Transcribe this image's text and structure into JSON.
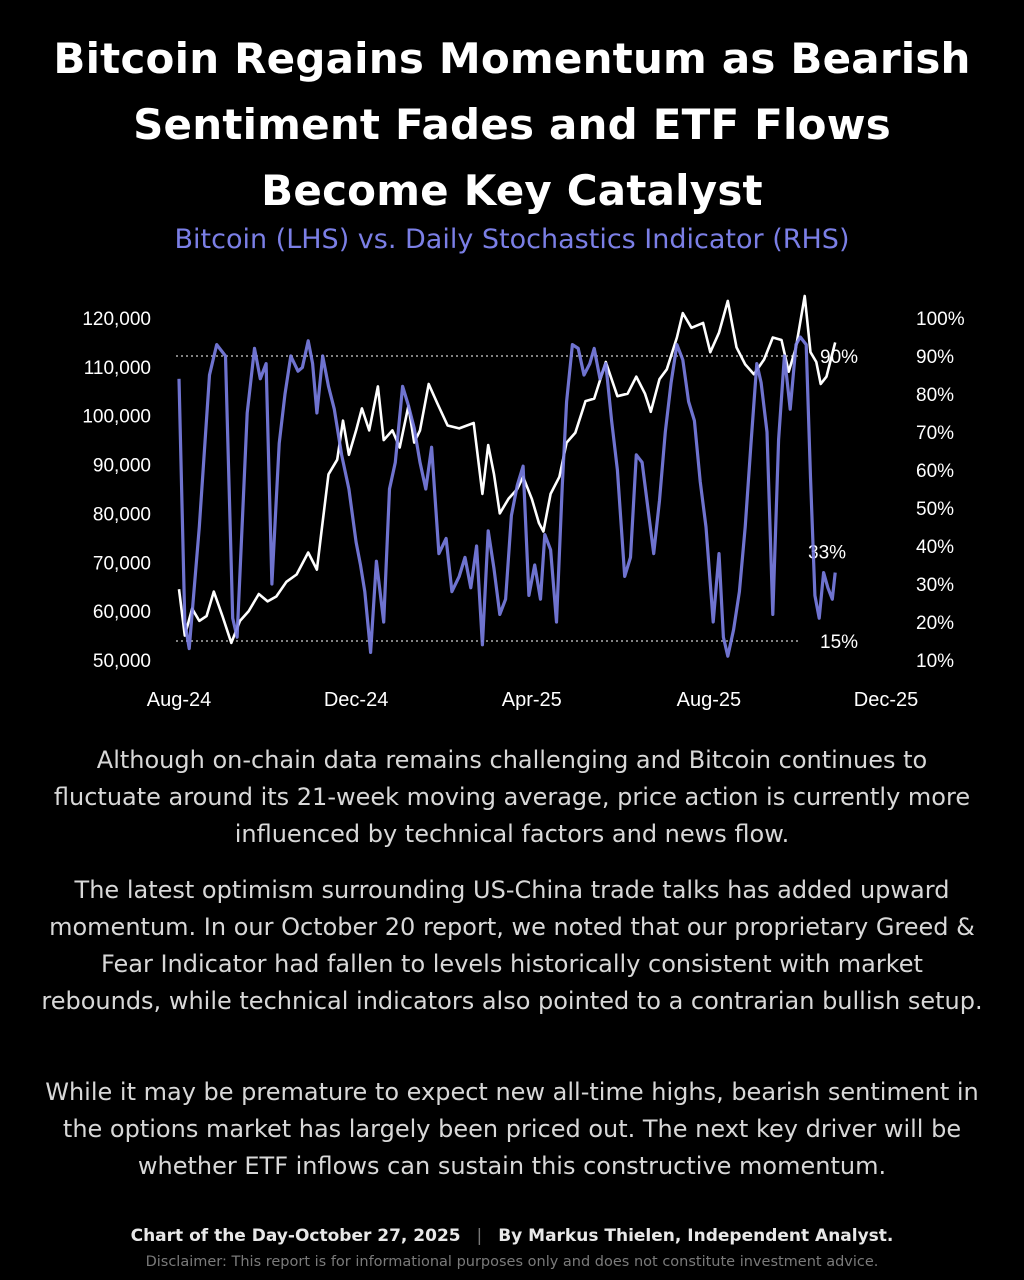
{
  "title_lines": [
    "Bitcoin Regains Momentum as Bearish",
    "Sentiment Fades and ETF Flows",
    "Become Key Catalyst"
  ],
  "colors": {
    "background": "#000000",
    "bitcoin_line": "#ffffff",
    "stochastic_line": "#7b7fe6",
    "subtitle": "#7b7fe6"
  },
  "chart_data": {
    "type": "line",
    "title": "Bitcoin (LHS) vs. Daily Stochastics Indicator (RHS)",
    "x_ticks": [
      "Aug-24",
      "Dec-24",
      "Apr-25",
      "Aug-25",
      "Dec-25"
    ],
    "xlim": [
      "2024-08-01",
      "2025-12-01"
    ],
    "y_left": {
      "ticks": [
        "120,000",
        "110,000",
        "100,000",
        "90,000",
        "80,000",
        "70,000",
        "60,000",
        "50,000"
      ],
      "ylim": [
        50000,
        120000
      ]
    },
    "y_right": {
      "ticks": [
        "100%",
        "90%",
        "80%",
        "70%",
        "60%",
        "50%",
        "40%",
        "30%",
        "20%",
        "10%"
      ],
      "ylim": [
        10,
        100
      ]
    },
    "reference_lines": [
      {
        "label": "90%",
        "value": 90,
        "style": "dotted"
      },
      {
        "label": "15%",
        "value": 15,
        "style": "dotted"
      }
    ],
    "annotations": [
      {
        "label": "33%",
        "value": 33
      }
    ],
    "series": [
      {
        "axis": "left",
        "color": "#ffffff",
        "points": [
          [
            "2024-08-01",
            64500
          ],
          [
            "2024-08-05",
            55000
          ],
          [
            "2024-08-10",
            60500
          ],
          [
            "2024-08-15",
            58000
          ],
          [
            "2024-08-20",
            59000
          ],
          [
            "2024-08-25",
            64000
          ],
          [
            "2024-08-31",
            58900
          ],
          [
            "2024-09-06",
            53500
          ],
          [
            "2024-09-12",
            58000
          ],
          [
            "2024-09-18",
            60000
          ],
          [
            "2024-09-25",
            63500
          ],
          [
            "2024-10-01",
            62000
          ],
          [
            "2024-10-07",
            63000
          ],
          [
            "2024-10-14",
            66000
          ],
          [
            "2024-10-21",
            67500
          ],
          [
            "2024-10-29",
            72000
          ],
          [
            "2024-11-04",
            68500
          ],
          [
            "2024-11-07",
            76000
          ],
          [
            "2024-11-12",
            88000
          ],
          [
            "2024-11-18",
            91000
          ],
          [
            "2024-11-22",
            99000
          ],
          [
            "2024-11-26",
            92000
          ],
          [
            "2024-12-01",
            97000
          ],
          [
            "2024-12-05",
            101500
          ],
          [
            "2024-12-10",
            97000
          ],
          [
            "2024-12-16",
            106000
          ],
          [
            "2024-12-20",
            95000
          ],
          [
            "2024-12-26",
            97000
          ],
          [
            "2024-12-31",
            93500
          ],
          [
            "2025-01-06",
            102000
          ],
          [
            "2025-01-10",
            94500
          ],
          [
            "2025-01-14",
            97000
          ],
          [
            "2025-01-20",
            106500
          ],
          [
            "2025-01-26",
            102500
          ],
          [
            "2025-02-02",
            98000
          ],
          [
            "2025-02-10",
            97400
          ],
          [
            "2025-02-20",
            98500
          ],
          [
            "2025-02-26",
            84000
          ],
          [
            "2025-03-02",
            94000
          ],
          [
            "2025-03-06",
            88000
          ],
          [
            "2025-03-10",
            80000
          ],
          [
            "2025-03-16",
            83000
          ],
          [
            "2025-03-22",
            85000
          ],
          [
            "2025-03-26",
            87500
          ],
          [
            "2025-04-01",
            83000
          ],
          [
            "2025-04-06",
            78000
          ],
          [
            "2025-04-09",
            76300
          ],
          [
            "2025-04-14",
            84000
          ],
          [
            "2025-04-20",
            87500
          ],
          [
            "2025-04-25",
            94500
          ],
          [
            "2025-05-01",
            96500
          ],
          [
            "2025-05-08",
            103000
          ],
          [
            "2025-05-14",
            103500
          ],
          [
            "2025-05-22",
            111000
          ],
          [
            "2025-05-30",
            104000
          ],
          [
            "2025-06-06",
            104500
          ],
          [
            "2025-06-12",
            108000
          ],
          [
            "2025-06-18",
            104500
          ],
          [
            "2025-06-22",
            100800
          ],
          [
            "2025-06-28",
            107500
          ],
          [
            "2025-07-03",
            109500
          ],
          [
            "2025-07-10",
            116000
          ],
          [
            "2025-07-14",
            121000
          ],
          [
            "2025-07-20",
            118000
          ],
          [
            "2025-07-28",
            119000
          ],
          [
            "2025-08-02",
            113000
          ],
          [
            "2025-08-08",
            117000
          ],
          [
            "2025-08-14",
            123500
          ],
          [
            "2025-08-20",
            114000
          ],
          [
            "2025-08-26",
            110500
          ],
          [
            "2025-09-01",
            108500
          ],
          [
            "2025-09-08",
            111500
          ],
          [
            "2025-09-14",
            116000
          ],
          [
            "2025-09-20",
            115500
          ],
          [
            "2025-09-25",
            109000
          ],
          [
            "2025-09-30",
            114000
          ],
          [
            "2025-10-06",
            124500
          ],
          [
            "2025-10-10",
            113000
          ],
          [
            "2025-10-14",
            111000
          ],
          [
            "2025-10-17",
            106500
          ],
          [
            "2025-10-21",
            108000
          ],
          [
            "2025-10-24",
            111500
          ],
          [
            "2025-10-27",
            115000
          ]
        ]
      },
      {
        "axis": "right",
        "color": "#7b7fe6",
        "points": [
          [
            "2024-08-01",
            84
          ],
          [
            "2024-08-05",
            20
          ],
          [
            "2024-08-08",
            13
          ],
          [
            "2024-08-15",
            45
          ],
          [
            "2024-08-22",
            85
          ],
          [
            "2024-08-27",
            93
          ],
          [
            "2024-09-02",
            90
          ],
          [
            "2024-09-07",
            21
          ],
          [
            "2024-09-10",
            16
          ],
          [
            "2024-09-17",
            75
          ],
          [
            "2024-09-22",
            92
          ],
          [
            "2024-09-26",
            84
          ],
          [
            "2024-09-30",
            88
          ],
          [
            "2024-10-04",
            30
          ],
          [
            "2024-10-09",
            67
          ],
          [
            "2024-10-13",
            80
          ],
          [
            "2024-10-17",
            90
          ],
          [
            "2024-10-22",
            86
          ],
          [
            "2024-10-25",
            87
          ],
          [
            "2024-10-29",
            94
          ],
          [
            "2024-11-01",
            88
          ],
          [
            "2024-11-04",
            75
          ],
          [
            "2024-11-08",
            90
          ],
          [
            "2024-11-12",
            82
          ],
          [
            "2024-11-16",
            76
          ],
          [
            "2024-11-21",
            64
          ],
          [
            "2024-11-26",
            55
          ],
          [
            "2024-12-01",
            41
          ],
          [
            "2024-12-04",
            35
          ],
          [
            "2024-12-07",
            28
          ],
          [
            "2024-12-11",
            12
          ],
          [
            "2024-12-15",
            36
          ],
          [
            "2024-12-20",
            20
          ],
          [
            "2024-12-24",
            55
          ],
          [
            "2024-12-28",
            62
          ],
          [
            "2025-01-02",
            82
          ],
          [
            "2025-01-06",
            77
          ],
          [
            "2025-01-10",
            71
          ],
          [
            "2025-01-14",
            62
          ],
          [
            "2025-01-18",
            55
          ],
          [
            "2025-01-22",
            66
          ],
          [
            "2025-01-27",
            38
          ],
          [
            "2025-02-01",
            42
          ],
          [
            "2025-02-05",
            28
          ],
          [
            "2025-02-10",
            32
          ],
          [
            "2025-02-14",
            37
          ],
          [
            "2025-02-18",
            29
          ],
          [
            "2025-02-22",
            40
          ],
          [
            "2025-02-26",
            14
          ],
          [
            "2025-03-02",
            44
          ],
          [
            "2025-03-06",
            34
          ],
          [
            "2025-03-10",
            22
          ],
          [
            "2025-03-14",
            26
          ],
          [
            "2025-03-18",
            48
          ],
          [
            "2025-03-22",
            56
          ],
          [
            "2025-03-26",
            61
          ],
          [
            "2025-03-30",
            27
          ],
          [
            "2025-04-03",
            35
          ],
          [
            "2025-04-07",
            26
          ],
          [
            "2025-04-10",
            43
          ],
          [
            "2025-04-14",
            39
          ],
          [
            "2025-04-18",
            20
          ],
          [
            "2025-04-22",
            56
          ],
          [
            "2025-04-25",
            78
          ],
          [
            "2025-04-29",
            93
          ],
          [
            "2025-05-03",
            92
          ],
          [
            "2025-05-07",
            85
          ],
          [
            "2025-05-11",
            88
          ],
          [
            "2025-05-14",
            92
          ],
          [
            "2025-05-18",
            84
          ],
          [
            "2025-05-22",
            88
          ],
          [
            "2025-05-26",
            73
          ],
          [
            "2025-05-30",
            60
          ],
          [
            "2025-06-04",
            32
          ],
          [
            "2025-06-08",
            37
          ],
          [
            "2025-06-12",
            64
          ],
          [
            "2025-06-16",
            62
          ],
          [
            "2025-06-20",
            50
          ],
          [
            "2025-06-24",
            38
          ],
          [
            "2025-06-28",
            52
          ],
          [
            "2025-07-02",
            70
          ],
          [
            "2025-07-06",
            83
          ],
          [
            "2025-07-10",
            93
          ],
          [
            "2025-07-14",
            89
          ],
          [
            "2025-07-18",
            78
          ],
          [
            "2025-07-22",
            73
          ],
          [
            "2025-07-26",
            57
          ],
          [
            "2025-07-30",
            45
          ],
          [
            "2025-08-04",
            20
          ],
          [
            "2025-08-08",
            38
          ],
          [
            "2025-08-11",
            16
          ],
          [
            "2025-08-14",
            11
          ],
          [
            "2025-08-18",
            18
          ],
          [
            "2025-08-22",
            28
          ],
          [
            "2025-08-26",
            45
          ],
          [
            "2025-08-30",
            67
          ],
          [
            "2025-09-03",
            88
          ],
          [
            "2025-09-06",
            83
          ],
          [
            "2025-09-10",
            70
          ],
          [
            "2025-09-14",
            22
          ],
          [
            "2025-09-18",
            68
          ],
          [
            "2025-09-22",
            90
          ],
          [
            "2025-09-26",
            76
          ],
          [
            "2025-09-30",
            93
          ],
          [
            "2025-10-03",
            95
          ],
          [
            "2025-10-07",
            93
          ],
          [
            "2025-10-10",
            58
          ],
          [
            "2025-10-13",
            27
          ],
          [
            "2025-10-16",
            21
          ],
          [
            "2025-10-19",
            33
          ],
          [
            "2025-10-22",
            29
          ],
          [
            "2025-10-25",
            26
          ],
          [
            "2025-10-27",
            33
          ]
        ]
      }
    ]
  },
  "body": {
    "p1": "Although on-chain data remains challenging and Bitcoin continues to fluctuate around its 21-week moving average, price action is currently more influenced by technical factors and news flow.",
    "p2": "The latest optimism surrounding US-China trade talks has added upward momentum. In our October 20 report, we noted that our proprietary Greed & Fear Indicator had fallen to levels historically consistent with market rebounds, while technical indicators also pointed to a contrarian bullish setup.",
    "p3": "While it may be premature to expect new all-time highs, bearish sentiment in the options market has largely been priced out. The next key driver will be whether ETF inflows can sustain this constructive momentum."
  },
  "footer": {
    "left": "Chart of the Day-October 27, 2025",
    "separator": "|",
    "right": "By Markus Thielen, Independent Analyst.",
    "disclaimer": "Disclaimer: This report is for informational purposes only and does not constitute investment advice."
  }
}
